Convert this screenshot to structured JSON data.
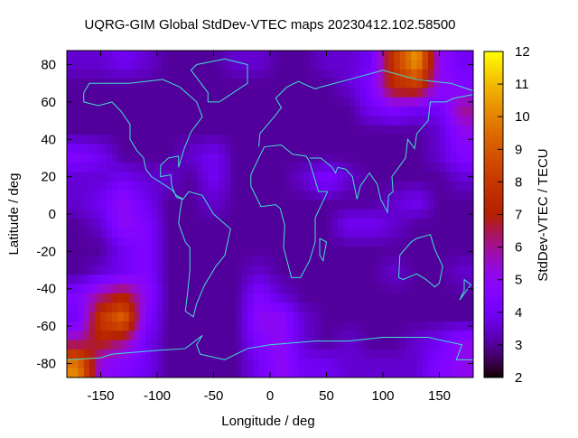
{
  "chart_data": {
    "type": "heatmap",
    "title": "UQRG-GIM Global StdDev-VTEC maps 20230412.102.58500",
    "xlabel": "Longitude / deg",
    "ylabel": "Latitude / deg",
    "colorbar_label": "StdDev-VTEC / TECU",
    "xlim": [
      -180,
      180
    ],
    "ylim": [
      -87.5,
      87.5
    ],
    "xticks": [
      -150,
      -100,
      -50,
      0,
      50,
      100,
      150
    ],
    "yticks": [
      80,
      60,
      40,
      20,
      0,
      -20,
      -40,
      -60,
      -80
    ],
    "cbrange": [
      2,
      12
    ],
    "cbticks": [
      2,
      3,
      4,
      5,
      6,
      7,
      8,
      9,
      10,
      11,
      12
    ],
    "colormap": "black-purple-red-yellow",
    "coastline_color": "#40e0d0",
    "grid": false,
    "lon_centers": [
      -170,
      -150,
      -130,
      -110,
      -90,
      -70,
      -50,
      -30,
      -10,
      10,
      30,
      50,
      70,
      90,
      110,
      130,
      150,
      170
    ],
    "lat_centers": [
      81.25,
      68.75,
      56.25,
      43.75,
      31.25,
      18.75,
      6.25,
      -6.25,
      -18.75,
      -31.25,
      -43.75,
      -56.25,
      -68.75,
      -81.25
    ],
    "values": [
      [
        3.5,
        3.5,
        4,
        3.5,
        3,
        3,
        3,
        3.5,
        3.5,
        3,
        3,
        3.5,
        3.5,
        4,
        8,
        10.5,
        5,
        4
      ],
      [
        3,
        3,
        3,
        3,
        3,
        3,
        3,
        3,
        3,
        3,
        3,
        3,
        3.5,
        4.5,
        7.5,
        8,
        5,
        4.5
      ],
      [
        3,
        3,
        3,
        3,
        3,
        3,
        3,
        3,
        3,
        3,
        3,
        3,
        3,
        4,
        4.5,
        4,
        4,
        6
      ],
      [
        3,
        3,
        3,
        3,
        3,
        3,
        3,
        3,
        3,
        3,
        3,
        3,
        3,
        3,
        3,
        3,
        3.5,
        5
      ],
      [
        4.5,
        4,
        3,
        3,
        3,
        3.5,
        4,
        3,
        3,
        3,
        3,
        3,
        3,
        3,
        3,
        3,
        3.5,
        4.5
      ],
      [
        3.5,
        3.5,
        4,
        3.5,
        3.5,
        3,
        4,
        3,
        3,
        3,
        3.5,
        4.5,
        3.5,
        3,
        3,
        3,
        3,
        3.5
      ],
      [
        3.5,
        4,
        5,
        4,
        3,
        3,
        3.5,
        3,
        3,
        3,
        3,
        3,
        3,
        3,
        3.5,
        4,
        3,
        3
      ],
      [
        3,
        3.5,
        5,
        4.5,
        3,
        3,
        3,
        3,
        3,
        3,
        3,
        3,
        4,
        4,
        3.5,
        3,
        3,
        3
      ],
      [
        3,
        3,
        4,
        4.5,
        3,
        3,
        3,
        3,
        3,
        3,
        3,
        3,
        3,
        3,
        3,
        3,
        3,
        3
      ],
      [
        3,
        3.5,
        4,
        4.5,
        3,
        3,
        3,
        3,
        3.5,
        3,
        3,
        3,
        3,
        3,
        3.5,
        3,
        3,
        3.5
      ],
      [
        4.5,
        6,
        7,
        5,
        3,
        3,
        3,
        3,
        4.5,
        3.5,
        3,
        3,
        3,
        3,
        3,
        3,
        3,
        3
      ],
      [
        4,
        8,
        9.5,
        4.5,
        3,
        3,
        3,
        3,
        5,
        5,
        3.5,
        3,
        3,
        3,
        3,
        3,
        3,
        3
      ],
      [
        6,
        7,
        6,
        4,
        3,
        3,
        3,
        3,
        4.5,
        5,
        3.5,
        3,
        3.5,
        3,
        3,
        3.5,
        4,
        5
      ],
      [
        10,
        5,
        4.5,
        4,
        3,
        3,
        3,
        3,
        4,
        5,
        4,
        4,
        3.5,
        3.5,
        3.5,
        3.5,
        4.5,
        5
      ]
    ]
  }
}
